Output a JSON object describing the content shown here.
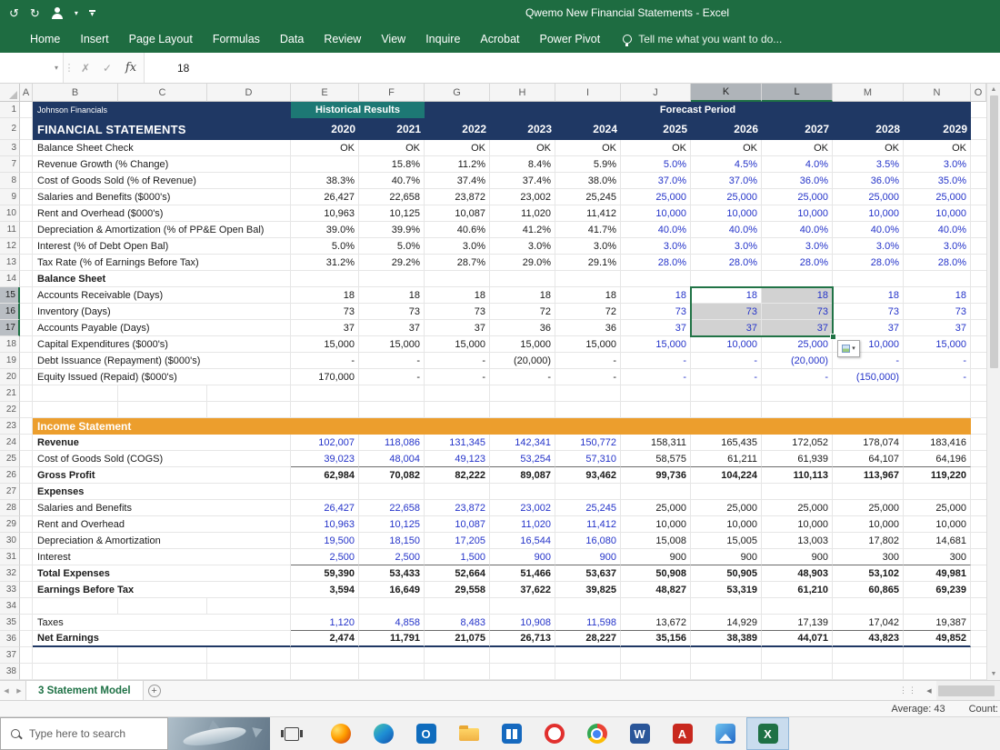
{
  "colors": {
    "excel_green": "#1E6C41",
    "header_navy": "#1F3864",
    "header_teal": "#1D7874",
    "header_orange": "#EC9E2D",
    "input_blue": "#2433C9",
    "selection_border_green": "#217346"
  },
  "title_bar": {
    "title": "Qwemo New Financial Statements - Excel"
  },
  "ribbon": {
    "tabs": [
      "Home",
      "Insert",
      "Page Layout",
      "Formulas",
      "Data",
      "Review",
      "View",
      "Inquire",
      "Acrobat",
      "Power Pivot"
    ],
    "tell_me": "Tell me what you want to do..."
  },
  "formula_bar": {
    "name_box": "",
    "fx_label": "fx",
    "value": "18"
  },
  "column_letters": [
    "A",
    "B",
    "C",
    "D",
    "E",
    "F",
    "G",
    "H",
    "I",
    "J",
    "K",
    "L",
    "M",
    "N",
    "O"
  ],
  "selection": {
    "rows": [
      15,
      16,
      17
    ],
    "cols": [
      "K",
      "L"
    ],
    "active_row": 15,
    "active_col": "K"
  },
  "sheet": {
    "company": "Johnson Financials",
    "statement_title": "FINANCIAL STATEMENTS",
    "historical_label": "Historical Results",
    "forecast_label": "Forecast Period",
    "years": [
      "2020",
      "2021",
      "2022",
      "2023",
      "2024",
      "2025",
      "2026",
      "2027",
      "2028",
      "2029"
    ],
    "rows": [
      {
        "n": 1,
        "t": "b1"
      },
      {
        "n": 2,
        "t": "b2"
      },
      {
        "n": 3,
        "t": "d",
        "l": "Balance Sheet Check",
        "f": "check",
        "v": [
          "OK",
          "OK",
          "OK",
          "OK",
          "OK",
          "OK",
          "OK",
          "OK",
          "OK",
          "OK"
        ]
      },
      {
        "n": 7,
        "t": "d",
        "l": "Revenue Growth (% Change)",
        "f": "a",
        "v": [
          "",
          "15.8%",
          "11.2%",
          "8.4%",
          "5.9%",
          "5.0%",
          "4.5%",
          "4.0%",
          "3.5%",
          "3.0%"
        ]
      },
      {
        "n": 8,
        "t": "d",
        "l": "Cost of Goods Sold (% of Revenue)",
        "f": "a",
        "v": [
          "38.3%",
          "40.7%",
          "37.4%",
          "37.4%",
          "38.0%",
          "37.0%",
          "37.0%",
          "36.0%",
          "36.0%",
          "35.0%"
        ]
      },
      {
        "n": 9,
        "t": "d",
        "l": "Salaries and Benefits ($000's)",
        "f": "a",
        "v": [
          "26,427",
          "22,658",
          "23,872",
          "23,002",
          "25,245",
          "25,000",
          "25,000",
          "25,000",
          "25,000",
          "25,000"
        ]
      },
      {
        "n": 10,
        "t": "d",
        "l": "Rent and Overhead ($000's)",
        "f": "a",
        "v": [
          "10,963",
          "10,125",
          "10,087",
          "11,020",
          "11,412",
          "10,000",
          "10,000",
          "10,000",
          "10,000",
          "10,000"
        ]
      },
      {
        "n": 11,
        "t": "d",
        "l": "Depreciation & Amortization (% of PP&E Open Bal)",
        "f": "a",
        "v": [
          "39.0%",
          "39.9%",
          "40.6%",
          "41.2%",
          "41.7%",
          "40.0%",
          "40.0%",
          "40.0%",
          "40.0%",
          "40.0%"
        ]
      },
      {
        "n": 12,
        "t": "d",
        "l": "Interest (% of Debt Open Bal)",
        "f": "a",
        "v": [
          "5.0%",
          "5.0%",
          "3.0%",
          "3.0%",
          "3.0%",
          "3.0%",
          "3.0%",
          "3.0%",
          "3.0%",
          "3.0%"
        ]
      },
      {
        "n": 13,
        "t": "d",
        "l": "Tax Rate (% of Earnings Before Tax)",
        "f": "a",
        "v": [
          "31.2%",
          "29.2%",
          "28.7%",
          "29.0%",
          "29.1%",
          "28.0%",
          "28.0%",
          "28.0%",
          "28.0%",
          "28.0%"
        ]
      },
      {
        "n": 14,
        "t": "sec",
        "l": "Balance Sheet"
      },
      {
        "n": 15,
        "t": "d",
        "l": "Accounts Receivable (Days)",
        "f": "a",
        "v": [
          "18",
          "18",
          "18",
          "18",
          "18",
          "18",
          "18",
          "18",
          "18",
          "18"
        ]
      },
      {
        "n": 16,
        "t": "d",
        "l": "Inventory (Days)",
        "f": "a",
        "v": [
          "73",
          "73",
          "73",
          "72",
          "72",
          "73",
          "73",
          "73",
          "73",
          "73"
        ]
      },
      {
        "n": 17,
        "t": "d",
        "l": "Accounts Payable (Days)",
        "f": "a",
        "v": [
          "37",
          "37",
          "37",
          "36",
          "36",
          "37",
          "37",
          "37",
          "37",
          "37"
        ]
      },
      {
        "n": 18,
        "t": "d",
        "l": "Capital Expenditures ($000's)",
        "f": "a",
        "v": [
          "15,000",
          "15,000",
          "15,000",
          "15,000",
          "15,000",
          "15,000",
          "10,000",
          "25,000",
          "10,000",
          "15,000"
        ]
      },
      {
        "n": 19,
        "t": "d",
        "l": "Debt Issuance (Repayment) ($000's)",
        "f": "a",
        "v": [
          "-",
          "-",
          "-",
          "(20,000)",
          "-",
          "-",
          "-",
          "(20,000)",
          "-",
          "-"
        ]
      },
      {
        "n": 20,
        "t": "d",
        "l": "Equity Issued (Repaid) ($000's)",
        "f": "a",
        "v": [
          "170,000",
          "-",
          "-",
          "-",
          "-",
          "-",
          "-",
          "-",
          "(150,000)",
          "-"
        ]
      },
      {
        "n": 21,
        "t": "e"
      },
      {
        "n": 22,
        "t": "e"
      },
      {
        "n": 23,
        "t": "hdr",
        "l": "Income Statement"
      },
      {
        "n": 24,
        "t": "d",
        "l": "Revenue",
        "b": 1,
        "f": "s",
        "v": [
          "102,007",
          "118,086",
          "131,345",
          "142,341",
          "150,772",
          "158,311",
          "165,435",
          "172,052",
          "178,074",
          "183,416"
        ]
      },
      {
        "n": 25,
        "t": "d",
        "l": "Cost of Goods Sold (COGS)",
        "f": "s",
        "u": 1,
        "v": [
          "39,023",
          "48,004",
          "49,123",
          "53,254",
          "57,310",
          "58,575",
          "61,211",
          "61,939",
          "64,107",
          "64,196"
        ]
      },
      {
        "n": 26,
        "t": "d",
        "l": "Gross Profit",
        "b": 1,
        "f": "t",
        "v": [
          "62,984",
          "70,082",
          "82,222",
          "89,087",
          "93,462",
          "99,736",
          "104,224",
          "110,113",
          "113,967",
          "119,220"
        ]
      },
      {
        "n": 27,
        "t": "sec",
        "l": "Expenses"
      },
      {
        "n": 28,
        "t": "d",
        "l": "Salaries and Benefits",
        "f": "s",
        "v": [
          "26,427",
          "22,658",
          "23,872",
          "23,002",
          "25,245",
          "25,000",
          "25,000",
          "25,000",
          "25,000",
          "25,000"
        ]
      },
      {
        "n": 29,
        "t": "d",
        "l": "Rent and Overhead",
        "f": "s",
        "v": [
          "10,963",
          "10,125",
          "10,087",
          "11,020",
          "11,412",
          "10,000",
          "10,000",
          "10,000",
          "10,000",
          "10,000"
        ]
      },
      {
        "n": 30,
        "t": "d",
        "l": "Depreciation & Amortization",
        "f": "s",
        "v": [
          "19,500",
          "18,150",
          "17,205",
          "16,544",
          "16,080",
          "15,008",
          "15,005",
          "13,003",
          "17,802",
          "14,681"
        ]
      },
      {
        "n": 31,
        "t": "d",
        "l": "Interest",
        "f": "s",
        "u": 1,
        "v": [
          "2,500",
          "2,500",
          "1,500",
          "900",
          "900",
          "900",
          "900",
          "900",
          "300",
          "300"
        ]
      },
      {
        "n": 32,
        "t": "d",
        "l": "Total Expenses",
        "b": 1,
        "f": "t",
        "v": [
          "59,390",
          "53,433",
          "52,664",
          "51,466",
          "53,637",
          "50,908",
          "50,905",
          "48,903",
          "53,102",
          "49,981"
        ]
      },
      {
        "n": 33,
        "t": "d",
        "l": "Earnings Before Tax",
        "b": 1,
        "f": "t",
        "v": [
          "3,594",
          "16,649",
          "29,558",
          "37,622",
          "39,825",
          "48,827",
          "53,319",
          "61,210",
          "60,865",
          "69,239"
        ]
      },
      {
        "n": 34,
        "t": "e"
      },
      {
        "n": 35,
        "t": "d",
        "l": "Taxes",
        "f": "s",
        "u": 1,
        "v": [
          "1,120",
          "4,858",
          "8,483",
          "10,908",
          "11,598",
          "13,672",
          "14,929",
          "17,139",
          "17,042",
          "19,387"
        ]
      },
      {
        "n": 36,
        "t": "d",
        "l": "Net Earnings",
        "b": 1,
        "f": "t",
        "tb": 1,
        "v": [
          "2,474",
          "11,791",
          "21,075",
          "26,713",
          "28,227",
          "35,156",
          "38,389",
          "44,071",
          "43,823",
          "49,852"
        ]
      },
      {
        "n": 37,
        "t": "e"
      },
      {
        "n": 38,
        "t": "e"
      }
    ]
  },
  "sheet_tabs": {
    "active": "3 Statement Model"
  },
  "status_bar": {
    "average_text": "Average: 43",
    "count_text": "Count:"
  },
  "taskbar": {
    "search_placeholder": "Type here to search",
    "apps": [
      "firefox",
      "edge",
      "outlook",
      "file-explorer",
      "store",
      "opera",
      "chrome",
      "word",
      "acrobat",
      "photos",
      "excel"
    ],
    "active_app": "excel"
  }
}
